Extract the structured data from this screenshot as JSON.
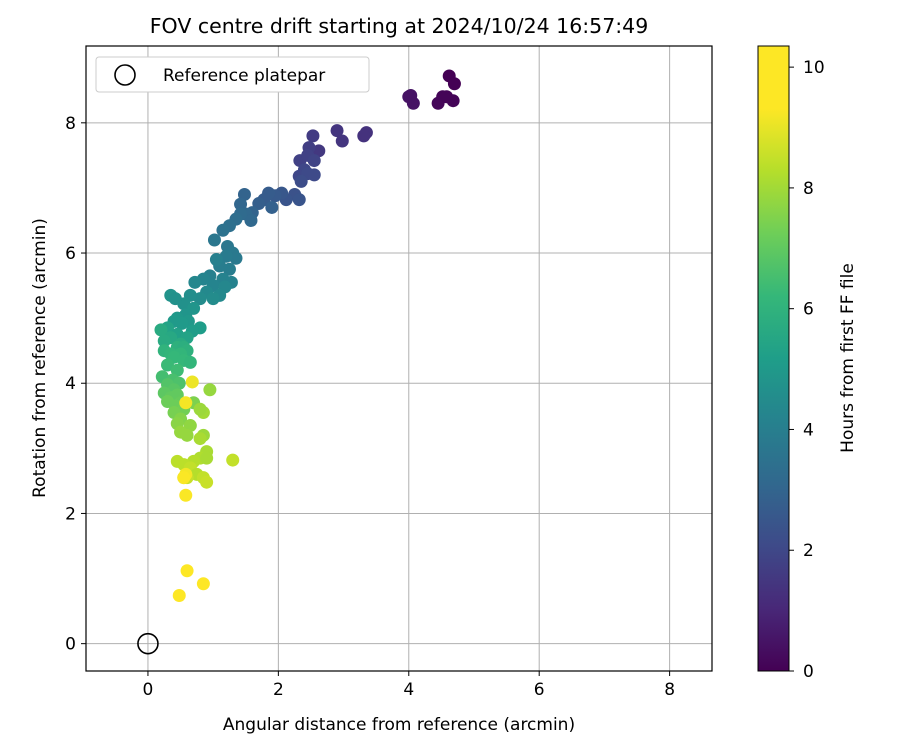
{
  "chart_data": {
    "type": "scatter",
    "title": "FOV centre drift starting at 2024/10/24 16:57:49",
    "xlabel": "Angular distance from reference (arcmin)",
    "ylabel": "Rotation from reference (arcmin)",
    "xlim": [
      -0.95,
      8.65
    ],
    "ylim": [
      -0.42,
      9.18
    ],
    "xticks": [
      0,
      2,
      4,
      6,
      8
    ],
    "yticks": [
      0,
      2,
      4,
      6,
      8
    ],
    "grid": true,
    "legend": {
      "position": "top-left",
      "entries": [
        {
          "label": "Reference platepar",
          "marker": "open-circle"
        }
      ]
    },
    "reference_point": {
      "label": "Reference platepar",
      "x": 0,
      "y": 0
    },
    "colorbar": {
      "label": "Hours from first FF file",
      "colormap": "viridis",
      "range": [
        0,
        10.35
      ],
      "ticks": [
        0,
        2,
        4,
        6,
        8,
        10
      ]
    },
    "series": [
      {
        "points": [
          [
            4.62,
            8.72
          ],
          [
            4.7,
            8.6
          ],
          [
            4.52,
            8.4
          ],
          [
            4.45,
            8.3
          ],
          [
            4.68,
            8.34
          ],
          [
            4.03,
            8.42
          ],
          [
            4.07,
            8.3
          ],
          [
            4.0,
            8.4
          ],
          [
            4.58,
            8.4
          ],
          [
            3.35,
            7.85
          ],
          [
            3.31,
            7.8
          ],
          [
            2.9,
            7.88
          ],
          [
            2.98,
            7.72
          ],
          [
            2.62,
            7.57
          ],
          [
            2.53,
            7.8
          ],
          [
            2.47,
            7.62
          ],
          [
            2.33,
            7.42
          ],
          [
            2.45,
            7.5
          ],
          [
            2.55,
            7.42
          ],
          [
            2.4,
            7.28
          ],
          [
            2.32,
            7.18
          ],
          [
            2.55,
            7.2
          ],
          [
            2.45,
            7.22
          ],
          [
            2.35,
            7.1
          ],
          [
            2.25,
            6.9
          ],
          [
            2.32,
            6.82
          ],
          [
            2.12,
            6.82
          ],
          [
            2.05,
            6.92
          ],
          [
            1.95,
            6.88
          ],
          [
            1.85,
            6.92
          ],
          [
            1.78,
            6.82
          ],
          [
            1.7,
            6.76
          ],
          [
            1.9,
            6.7
          ],
          [
            1.6,
            6.62
          ],
          [
            1.48,
            6.9
          ],
          [
            1.42,
            6.75
          ],
          [
            1.5,
            6.6
          ],
          [
            1.58,
            6.5
          ],
          [
            1.42,
            6.6
          ],
          [
            1.35,
            6.52
          ],
          [
            1.25,
            6.42
          ],
          [
            1.15,
            6.35
          ],
          [
            1.02,
            6.2
          ],
          [
            1.22,
            6.1
          ],
          [
            1.3,
            6.0
          ],
          [
            1.35,
            5.92
          ],
          [
            1.2,
            5.95
          ],
          [
            1.1,
            5.8
          ],
          [
            1.25,
            5.75
          ],
          [
            1.05,
            5.9
          ],
          [
            0.95,
            5.65
          ],
          [
            1.15,
            5.6
          ],
          [
            1.28,
            5.55
          ],
          [
            0.85,
            5.6
          ],
          [
            1.0,
            5.5
          ],
          [
            1.18,
            5.48
          ],
          [
            0.72,
            5.55
          ],
          [
            0.9,
            5.4
          ],
          [
            1.1,
            5.35
          ],
          [
            0.8,
            5.3
          ],
          [
            1.0,
            5.3
          ],
          [
            0.65,
            5.35
          ],
          [
            0.55,
            5.22
          ],
          [
            0.35,
            5.35
          ],
          [
            0.42,
            5.3
          ],
          [
            0.7,
            5.15
          ],
          [
            0.58,
            5.05
          ],
          [
            0.45,
            5.0
          ],
          [
            0.62,
            4.95
          ],
          [
            0.52,
            4.92
          ],
          [
            0.4,
            4.95
          ],
          [
            0.8,
            4.85
          ],
          [
            0.68,
            4.8
          ],
          [
            0.3,
            4.85
          ],
          [
            0.2,
            4.82
          ],
          [
            0.45,
            4.75
          ],
          [
            0.6,
            4.7
          ],
          [
            0.35,
            4.7
          ],
          [
            0.25,
            4.65
          ],
          [
            0.5,
            4.6
          ],
          [
            0.45,
            4.55
          ],
          [
            0.55,
            4.55
          ],
          [
            0.25,
            4.5
          ],
          [
            0.35,
            4.45
          ],
          [
            0.6,
            4.5
          ],
          [
            0.5,
            4.45
          ],
          [
            0.4,
            4.4
          ],
          [
            0.55,
            4.35
          ],
          [
            0.65,
            4.32
          ],
          [
            0.3,
            4.28
          ],
          [
            0.45,
            4.2
          ],
          [
            0.22,
            4.1
          ],
          [
            0.38,
            4.05
          ],
          [
            0.48,
            4.0
          ],
          [
            0.3,
            3.98
          ],
          [
            0.4,
            3.9
          ],
          [
            0.25,
            3.85
          ],
          [
            0.35,
            3.78
          ],
          [
            0.45,
            3.82
          ],
          [
            0.5,
            3.7
          ],
          [
            0.3,
            3.72
          ],
          [
            0.42,
            3.65
          ],
          [
            0.55,
            3.6
          ],
          [
            0.4,
            3.55
          ],
          [
            0.7,
            3.7
          ],
          [
            0.95,
            3.9
          ],
          [
            0.85,
            3.55
          ],
          [
            0.8,
            3.6
          ],
          [
            0.5,
            3.45
          ],
          [
            0.45,
            3.38
          ],
          [
            0.65,
            3.35
          ],
          [
            0.5,
            3.25
          ],
          [
            0.6,
            3.2
          ],
          [
            0.85,
            3.2
          ],
          [
            0.8,
            3.15
          ],
          [
            0.9,
            2.95
          ],
          [
            0.8,
            2.85
          ],
          [
            0.7,
            2.8
          ],
          [
            0.9,
            2.85
          ],
          [
            0.45,
            2.8
          ],
          [
            0.55,
            2.75
          ],
          [
            0.65,
            2.7
          ],
          [
            1.3,
            2.82
          ],
          [
            0.75,
            2.6
          ],
          [
            0.85,
            2.55
          ],
          [
            0.9,
            2.48
          ],
          [
            0.55,
            2.55
          ],
          [
            0.6,
            2.55
          ],
          [
            0.68,
            4.02
          ],
          [
            0.58,
            3.7
          ],
          [
            0.58,
            2.6
          ],
          [
            0.55,
            2.55
          ],
          [
            0.58,
            2.28
          ],
          [
            0.6,
            1.12
          ],
          [
            0.85,
            0.92
          ],
          [
            0.48,
            0.74
          ]
        ],
        "hours": [
          0.0,
          0.0,
          0.1,
          0.15,
          0.1,
          0.5,
          0.5,
          0.5,
          0.1,
          1.5,
          1.5,
          1.6,
          1.6,
          1.7,
          1.8,
          1.9,
          2.0,
          2.0,
          2.1,
          2.2,
          2.2,
          2.3,
          2.3,
          2.4,
          2.6,
          2.7,
          2.7,
          2.8,
          2.9,
          3.0,
          3.0,
          3.1,
          3.2,
          3.3,
          3.3,
          3.4,
          3.5,
          3.5,
          3.6,
          3.7,
          3.8,
          3.9,
          4.1,
          4.1,
          4.2,
          4.2,
          4.3,
          4.4,
          4.4,
          4.5,
          4.5,
          4.6,
          4.6,
          4.7,
          4.7,
          4.8,
          4.8,
          4.9,
          4.9,
          5.0,
          5.0,
          5.1,
          5.2,
          5.3,
          5.2,
          5.4,
          5.4,
          5.5,
          5.5,
          5.6,
          5.6,
          5.7,
          5.7,
          6.0,
          6.3,
          5.9,
          6.0,
          6.2,
          6.3,
          6.3,
          6.6,
          6.5,
          6.7,
          6.8,
          6.6,
          6.8,
          6.9,
          6.9,
          6.8,
          7.0,
          7.1,
          7.2,
          7.3,
          7.4,
          7.5,
          7.6,
          7.7,
          7.8,
          7.8,
          7.9,
          8.0,
          8.0,
          8.1,
          8.2,
          8.3,
          8.7,
          8.9,
          8.8,
          8.4,
          8.5,
          8.6,
          8.7,
          8.7,
          8.8,
          9.0,
          9.0,
          9.1,
          9.2,
          9.0,
          9.3,
          9.3,
          9.4,
          9.4,
          9.2,
          9.4,
          9.5,
          9.5,
          9.5,
          10.1,
          10.2,
          10.2,
          10.3,
          10.3,
          10.35,
          10.35,
          10.35
        ]
      }
    ]
  }
}
